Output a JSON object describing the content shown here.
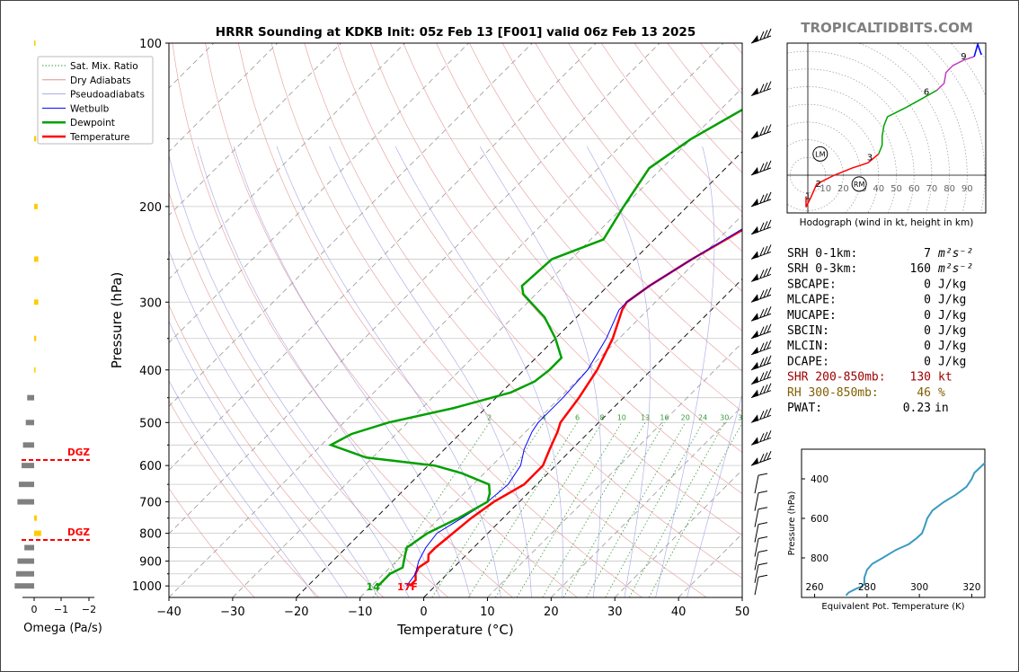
{
  "header": {
    "title": "HRRR Sounding at KDKB Init: 05z Feb 13 [F001] valid 06z Feb 13 2025",
    "brand": "TROPICALTIDBITS.COM"
  },
  "colors": {
    "temperature": "#ff0000",
    "dewpoint": "#00a000",
    "wetbulb": "#0000ff",
    "dry_adiabat": "#e08080",
    "pseudo_adiabat": "#9090e0",
    "mixing_ratio": "#3a9a3a",
    "isotherm": "#555555",
    "theta_e": "#3a9ac0",
    "omega_up": "#ffcc00",
    "omega_down": "#808080",
    "dgz": "#ff0000",
    "srh": "#000000",
    "shr": "#a00000",
    "rh": "#806000"
  },
  "chart_data": [
    {
      "id": "skewt",
      "type": "line",
      "xlabel": "Temperature (°C)",
      "ylabel": "Pressure (hPa)",
      "xlim": [
        -40,
        50
      ],
      "ylim": [
        1050,
        100
      ],
      "y_scale": "log",
      "x_ticks": [
        -40,
        -30,
        -20,
        -10,
        0,
        10,
        20,
        30,
        40,
        50
      ],
      "x_tick_labels": [
        "−40",
        "−30",
        "−20",
        "−10",
        "0",
        "10",
        "20",
        "30",
        "40",
        "50"
      ],
      "y_ticks": [
        100,
        200,
        300,
        400,
        500,
        600,
        700,
        800,
        900,
        1000
      ],
      "y_tick_labels": [
        "100",
        "200",
        "300",
        "400",
        "500",
        "600",
        "700",
        "800",
        "900",
        "1000"
      ],
      "mixing_ratio_labels": [
        "2",
        "4",
        "6",
        "8",
        "10",
        "13",
        "16",
        "20",
        "24",
        "30",
        "36"
      ],
      "legend": {
        "position": "top-left",
        "entries": [
          "Sat. Mix. Ratio",
          "Dry Adiabats",
          "Pseudoadiabats",
          "Wetbulb",
          "Dewpoint",
          "Temperature"
        ]
      },
      "surface_td_label": "14",
      "surface_t_label": "17F",
      "series": [
        {
          "name": "Temperature",
          "points": [
            [
              -4,
              1000
            ],
            [
              -4,
              975
            ],
            [
              -5,
              950
            ],
            [
              -5.5,
              925
            ],
            [
              -5,
              900
            ],
            [
              -6,
              875
            ],
            [
              -6,
              850
            ],
            [
              -5.5,
              800
            ],
            [
              -5,
              750
            ],
            [
              -4,
              700
            ],
            [
              -2,
              650
            ],
            [
              -2,
              600
            ],
            [
              -3.5,
              560
            ],
            [
              -5,
              520
            ],
            [
              -6,
              500
            ],
            [
              -7,
              450
            ],
            [
              -8.5,
              400
            ],
            [
              -11,
              350
            ],
            [
              -14,
              310
            ],
            [
              -14.5,
              300
            ],
            [
              -13.5,
              280
            ],
            [
              -11,
              250
            ],
            [
              -5,
              200
            ],
            [
              1,
              170
            ],
            [
              5,
              140
            ],
            [
              8,
              120
            ],
            [
              11,
              100
            ]
          ]
        },
        {
          "name": "Wetbulb",
          "points": [
            [
              -4.5,
              1000
            ],
            [
              -5,
              950
            ],
            [
              -6.5,
              900
            ],
            [
              -7.5,
              850
            ],
            [
              -8,
              800
            ],
            [
              -6.5,
              750
            ],
            [
              -5,
              700
            ],
            [
              -4.5,
              650
            ],
            [
              -5.5,
              600
            ],
            [
              -7.5,
              560
            ],
            [
              -9,
              520
            ],
            [
              -9.5,
              500
            ],
            [
              -9.5,
              450
            ],
            [
              -10,
              400
            ],
            [
              -12,
              350
            ],
            [
              -14.5,
              310
            ],
            [
              -14.5,
              300
            ],
            [
              -13.5,
              280
            ],
            [
              -11,
              250
            ],
            [
              -5.5,
              200
            ],
            [
              0.5,
              170
            ],
            [
              4.5,
              140
            ],
            [
              7.5,
              120
            ],
            [
              10.5,
              100
            ]
          ]
        },
        {
          "name": "Dewpoint",
          "points": [
            [
              -9,
              1000
            ],
            [
              -9,
              975
            ],
            [
              -9,
              950
            ],
            [
              -8,
              925
            ],
            [
              -9.5,
              880
            ],
            [
              -10.5,
              850
            ],
            [
              -9.5,
              800
            ],
            [
              -7,
              750
            ],
            [
              -5,
              700
            ],
            [
              -6,
              675
            ],
            [
              -7.5,
              650
            ],
            [
              -13.5,
              620
            ],
            [
              -19,
              600
            ],
            [
              -31,
              580
            ],
            [
              -38.5,
              550
            ],
            [
              -37,
              525
            ],
            [
              -33,
              500
            ],
            [
              -25,
              470
            ],
            [
              -18.5,
              440
            ],
            [
              -16.5,
              420
            ],
            [
              -16,
              400
            ],
            [
              -16,
              380
            ],
            [
              -20,
              350
            ],
            [
              -25,
              320
            ],
            [
              -32,
              290
            ],
            [
              -33.5,
              280
            ],
            [
              -33,
              250
            ],
            [
              -28,
              230
            ],
            [
              -30,
              200
            ],
            [
              -32,
              170
            ],
            [
              -30,
              150
            ],
            [
              -26,
              130
            ],
            [
              -18,
              100
            ]
          ]
        }
      ]
    },
    {
      "id": "hodograph",
      "type": "line",
      "title": "Hodograph (wind in kt, height in km)",
      "ring_labels": [
        "10",
        "20",
        "30",
        "40",
        "50",
        "60",
        "70",
        "80",
        "90"
      ],
      "height_labels": [
        "1",
        "2",
        "3",
        "6",
        "9"
      ],
      "markers": [
        "LM",
        "RM"
      ],
      "segments": [
        {
          "range_km": "0-3",
          "color": "#ff0000",
          "points": [
            [
              -1,
              -12
            ],
            [
              -1,
              -18
            ],
            [
              2,
              -12
            ],
            [
              5,
              -5
            ],
            [
              15,
              0
            ],
            [
              25,
              4
            ],
            [
              34,
              7
            ],
            [
              40,
              12
            ]
          ]
        },
        {
          "range_km": "3-6",
          "color": "#00a000",
          "points": [
            [
              40,
              12
            ],
            [
              42,
              17
            ],
            [
              42,
              22
            ],
            [
              43,
              28
            ],
            [
              45,
              33
            ],
            [
              55,
              38
            ],
            [
              64,
              43
            ],
            [
              73,
              48
            ]
          ]
        },
        {
          "range_km": "6-9",
          "color": "#c040c0",
          "points": [
            [
              73,
              48
            ],
            [
              77,
              52
            ],
            [
              78,
              58
            ],
            [
              82,
              62
            ],
            [
              88,
              65
            ],
            [
              94,
              67
            ]
          ]
        },
        {
          "range_km": "9+",
          "color": "#0000ff",
          "points": [
            [
              94,
              67
            ],
            [
              96,
              74
            ],
            [
              98,
              68
            ]
          ]
        }
      ],
      "storm_motion": {
        "LM": [
          7,
          12
        ],
        "RM": [
          29,
          -5
        ]
      }
    },
    {
      "id": "omega",
      "type": "bar",
      "xlabel": "Omega (Pa/s)",
      "x_ticks": [
        "0",
        "−1",
        "−2"
      ],
      "xlim": [
        1,
        -2.4
      ],
      "levels": [
        100,
        150,
        200,
        250,
        300,
        350,
        400,
        450,
        500,
        550,
        600,
        650,
        700,
        750,
        800,
        850,
        900,
        950,
        1000
      ],
      "values": [
        -0.1,
        -0.15,
        -0.25,
        -0.3,
        -0.3,
        -0.15,
        -0.1,
        0.5,
        0.6,
        0.8,
        0.9,
        1.1,
        1.2,
        -0.2,
        -0.5,
        0.7,
        1.2,
        1.3,
        1.4
      ],
      "dgz_label": "DGZ",
      "dgz_levels": [
        583,
        828
      ]
    },
    {
      "id": "theta_e",
      "type": "line",
      "xlabel": "Equivalent Pot. Temperature (K)",
      "ylabel": "Pressure (hPa)",
      "xlim": [
        255,
        325
      ],
      "ylim": [
        1000,
        250
      ],
      "x_ticks": [
        260,
        280,
        300,
        320
      ],
      "y_ticks": [
        400,
        600,
        800,
        1000
      ],
      "x_tick_labels": [
        "260",
        "280",
        "300",
        "320"
      ],
      "y_tick_labels": [
        "400",
        "600",
        "800",
        ""
      ],
      "points": [
        [
          272,
          990
        ],
        [
          273,
          975
        ],
        [
          276,
          955
        ],
        [
          278,
          945
        ],
        [
          279,
          930
        ],
        [
          279,
          900
        ],
        [
          280,
          860
        ],
        [
          282,
          830
        ],
        [
          286,
          800
        ],
        [
          291,
          760
        ],
        [
          296,
          730
        ],
        [
          299,
          700
        ],
        [
          301,
          675
        ],
        [
          302,
          640
        ],
        [
          303,
          600
        ],
        [
          305,
          560
        ],
        [
          309,
          520
        ],
        [
          314,
          480
        ],
        [
          318,
          440
        ],
        [
          320,
          400
        ],
        [
          321,
          370
        ],
        [
          325,
          320
        ]
      ]
    }
  ],
  "stats": [
    {
      "label": "SRH 0-1km:",
      "value": "7",
      "unit": "m²s⁻²",
      "color": "#000000"
    },
    {
      "label": "SRH 0-3km:",
      "value": "160",
      "unit": "m²s⁻²",
      "color": "#000000"
    },
    {
      "label": "SBCAPE:",
      "value": "0",
      "unit": "J/kg",
      "color": "#000000"
    },
    {
      "label": "MLCAPE:",
      "value": "0",
      "unit": "J/kg",
      "color": "#000000"
    },
    {
      "label": "MUCAPE:",
      "value": "0",
      "unit": "J/kg",
      "color": "#000000"
    },
    {
      "label": "SBCIN:",
      "value": "0",
      "unit": "J/kg",
      "color": "#000000"
    },
    {
      "label": "MLCIN:",
      "value": "0",
      "unit": "J/kg",
      "color": "#000000"
    },
    {
      "label": "DCAPE:",
      "value": "0",
      "unit": "J/kg",
      "color": "#000000"
    },
    {
      "label": "SHR 200-850mb:",
      "value": "130",
      "unit": "kt",
      "color": "#a00000"
    },
    {
      "label": "RH 300-850mb:",
      "value": "46",
      "unit": "%",
      "color": "#806000"
    },
    {
      "label": "PWAT:",
      "value": "0.23",
      "unit": "in",
      "color": "#000000"
    }
  ]
}
